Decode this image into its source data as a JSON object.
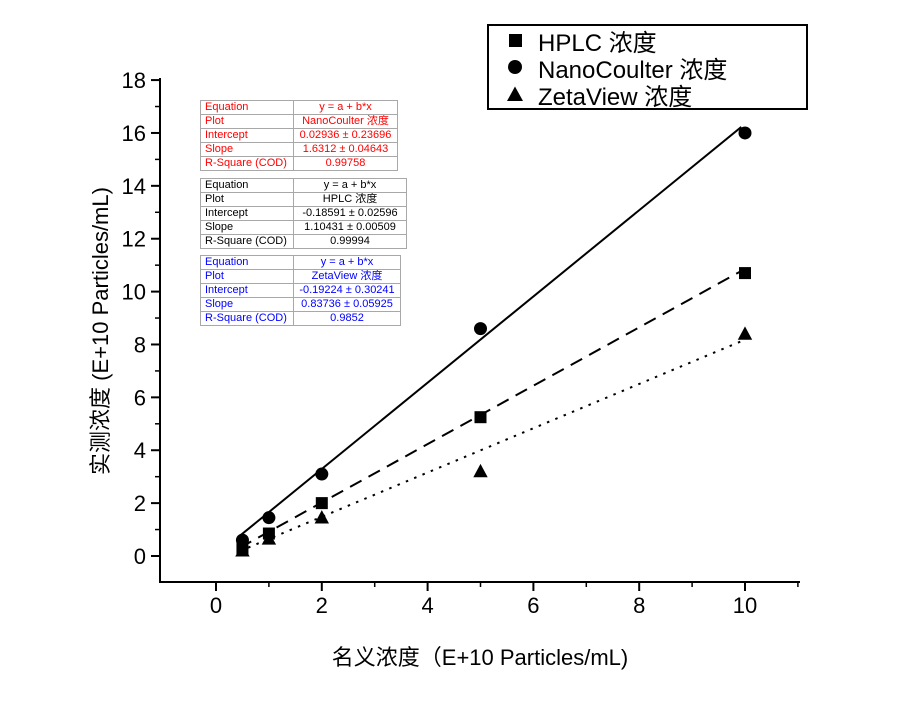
{
  "figure": {
    "xlabel": "名义浓度（E+10 Particles/mL)",
    "ylabel": "实测浓度 (E+10 Particles/mL)"
  },
  "legend": {
    "items": [
      {
        "label": "HPLC 浓度",
        "marker": "square"
      },
      {
        "label": "NanoCoulter 浓度",
        "marker": "circle"
      },
      {
        "label": "ZetaView 浓度",
        "marker": "triangle"
      }
    ]
  },
  "equation_tables": [
    {
      "id": "nanocoulter",
      "color": "#ff0000",
      "rows": [
        {
          "label": "Equation",
          "value": "y = a + b*x"
        },
        {
          "label": "Plot",
          "value": "NanoCoulter 浓度"
        },
        {
          "label": "Intercept",
          "value": "0.02936 ± 0.23696"
        },
        {
          "label": "Slope",
          "value": "1.6312 ± 0.04643"
        },
        {
          "label": "R-Square (COD)",
          "value": "0.99758"
        }
      ]
    },
    {
      "id": "hplc",
      "color": "#000000",
      "rows": [
        {
          "label": "Equation",
          "value": "y = a + b*x"
        },
        {
          "label": "Plot",
          "value": "HPLC 浓度"
        },
        {
          "label": "Intercept",
          "value": "-0.18591 ± 0.02596"
        },
        {
          "label": "Slope",
          "value": "1.10431 ± 0.00509"
        },
        {
          "label": "R-Square (COD)",
          "value": "0.99994"
        }
      ]
    },
    {
      "id": "zetaview",
      "color": "#0000ff",
      "rows": [
        {
          "label": "Equation",
          "value": "y = a + b*x"
        },
        {
          "label": "Plot",
          "value": "ZetaView 浓度"
        },
        {
          "label": "Intercept",
          "value": "-0.19224 ± 0.30241"
        },
        {
          "label": "Slope",
          "value": "0.83736 ± 0.05925"
        },
        {
          "label": "R-Square (COD)",
          "value": "0.9852"
        }
      ]
    }
  ],
  "chart_data": {
    "type": "scatter",
    "title": "",
    "xlabel": "名义浓度（E+10 Particles/mL)",
    "ylabel": "实测浓度 (E+10 Particles/mL)",
    "x": [
      0.5,
      1,
      2,
      5,
      10
    ],
    "series": [
      {
        "name": "HPLC 浓度",
        "marker": "square",
        "line_style": "dashed",
        "color": "#000000",
        "values": [
          0.3,
          0.85,
          2.0,
          5.25,
          10.7
        ],
        "fit": {
          "equation": "y = a + b*x",
          "intercept": -0.18591,
          "intercept_err": 0.02596,
          "slope": 1.10431,
          "slope_err": 0.00509,
          "r_square_cod": 0.99994
        }
      },
      {
        "name": "NanoCoulter 浓度",
        "marker": "circle",
        "line_style": "solid",
        "color": "#000000",
        "values": [
          0.6,
          1.45,
          3.1,
          8.6,
          16.0
        ],
        "fit": {
          "equation": "y = a + b*x",
          "intercept": 0.02936,
          "intercept_err": 0.23696,
          "slope": 1.6312,
          "slope_err": 0.04643,
          "r_square_cod": 0.99758
        }
      },
      {
        "name": "ZetaView 浓度",
        "marker": "triangle",
        "line_style": "dotted",
        "color": "#000000",
        "values": [
          0.2,
          0.65,
          1.45,
          3.2,
          8.4
        ],
        "fit": {
          "equation": "y = a + b*x",
          "intercept": -0.19224,
          "intercept_err": 0.30241,
          "slope": 0.83736,
          "slope_err": 0.05925,
          "r_square_cod": 0.9852
        }
      }
    ],
    "x_ticks_major": [
      0,
      2,
      4,
      6,
      8,
      10
    ],
    "x_ticks_minor": [
      1,
      3,
      5,
      7,
      9,
      11
    ],
    "y_ticks_major": [
      0,
      2,
      4,
      6,
      8,
      10,
      12,
      14,
      16,
      18
    ],
    "y_ticks_minor": [
      1,
      3,
      5,
      7,
      9,
      11,
      13,
      15,
      17
    ],
    "xlim": [
      -1.06,
      11.05
    ],
    "ylim": [
      -0.98,
      18.05
    ],
    "grid": false,
    "legend_position": "top-right"
  }
}
